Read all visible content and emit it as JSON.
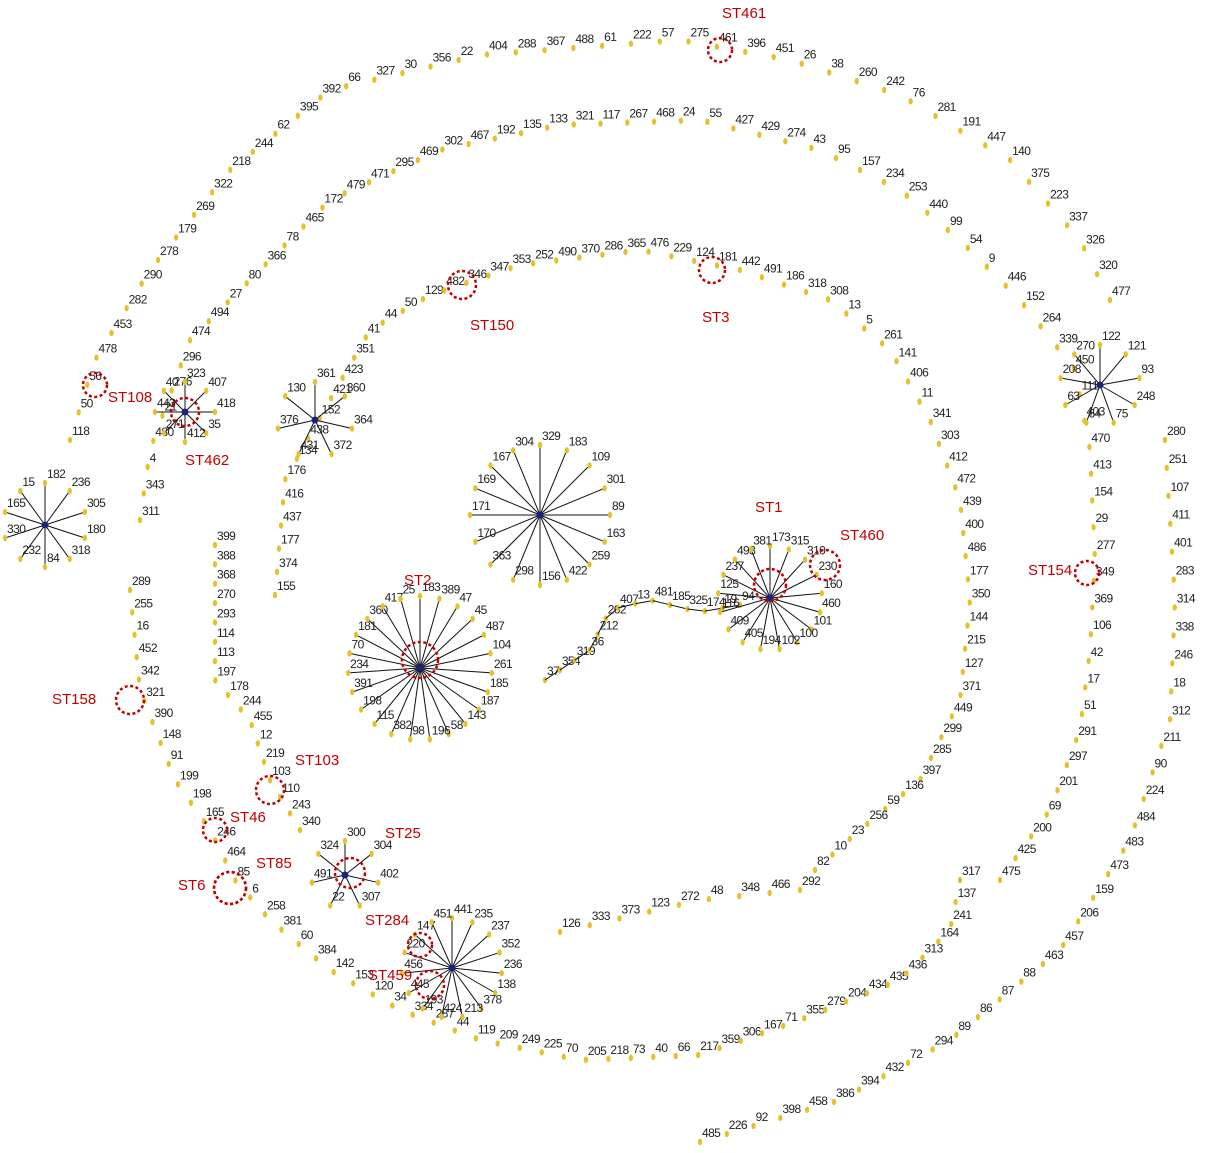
{
  "chains": [
    {
      "nodes": [
        "118",
        "50",
        "56",
        "478",
        "453",
        "282",
        "290",
        "278",
        "179",
        "269",
        "322",
        "218",
        "244",
        "62",
        "395",
        "392",
        "66",
        "327",
        "30",
        "356",
        "22",
        "404",
        "288",
        "367",
        "488",
        "61",
        "222",
        "57",
        "275",
        "461",
        "396",
        "451",
        "26",
        "38",
        "260",
        "242",
        "76",
        "281",
        "191",
        "447",
        "140",
        "375",
        "223",
        "337",
        "326",
        "320",
        "477"
      ]
    },
    {
      "nodes": [
        "311",
        "343",
        "4",
        "480",
        "21",
        "276",
        "296",
        "474",
        "494",
        "27",
        "80",
        "366",
        "78",
        "465",
        "172",
        "479",
        "471",
        "295",
        "469",
        "302",
        "467",
        "192",
        "135",
        "133",
        "321",
        "117",
        "267",
        "468",
        "24",
        "55",
        "427",
        "429",
        "274",
        "43",
        "95",
        "157",
        "234",
        "253",
        "440",
        "99",
        "54",
        "9",
        "446",
        "152",
        "264",
        "339",
        "450",
        "111",
        "403",
        "470",
        "413",
        "154",
        "29",
        "277",
        "349",
        "369",
        "106",
        "42",
        "17",
        "51",
        "291",
        "297",
        "201",
        "69",
        "200",
        "425",
        "475"
      ]
    },
    {
      "nodes": [
        "155",
        "374",
        "177",
        "437",
        "416",
        "176",
        "134",
        "438",
        "152",
        "421",
        "423",
        "351",
        "41",
        "44",
        "50",
        "129",
        "482",
        "346",
        "347",
        "353",
        "252",
        "490",
        "370",
        "286",
        "365",
        "476",
        "229",
        "124",
        "181",
        "442",
        "491",
        "186",
        "318",
        "308",
        "13",
        "5",
        "261",
        "141",
        "406",
        "11",
        "341",
        "303",
        "412",
        "472",
        "439",
        "400",
        "486",
        "177",
        "350",
        "144",
        "215",
        "127",
        "371",
        "449",
        "299",
        "285",
        "397",
        "136",
        "59",
        "256",
        "23",
        "10",
        "82"
      ]
    },
    {
      "nodes": [
        "292",
        "466",
        "348",
        "48",
        "272",
        "123",
        "373",
        "333",
        "126"
      ]
    },
    {
      "nodes": [
        "289",
        "255",
        "16",
        "452",
        "342",
        "321",
        "390",
        "148",
        "91",
        "199",
        "198",
        "165",
        "246",
        "464",
        "85",
        "6",
        "258",
        "381",
        "60",
        "384",
        "142",
        "153",
        "120",
        "34",
        "334",
        "287",
        "44",
        "119",
        "209",
        "249",
        "225",
        "70",
        "205",
        "218",
        "73",
        "40",
        "66",
        "217",
        "359",
        "306",
        "167",
        "71",
        "355",
        "279",
        "204",
        "434",
        "435",
        "436",
        "313",
        "164",
        "241",
        "137",
        "317"
      ]
    },
    {
      "nodes": [
        "280",
        "251",
        "107",
        "411",
        "401",
        "283",
        "314",
        "338",
        "246",
        "18",
        "312",
        "211",
        "90",
        "224",
        "484",
        "483",
        "473",
        "159",
        "206",
        "457",
        "463",
        "88",
        "87",
        "86",
        "89",
        "294",
        "72",
        "432",
        "394",
        "386",
        "458",
        "398",
        "92",
        "226",
        "485"
      ]
    },
    {
      "nodes": [
        "399",
        "388",
        "368",
        "270",
        "293",
        "114",
        "113",
        "197",
        "178",
        "244",
        "455",
        "12",
        "219",
        "103",
        "110",
        "243",
        "340"
      ]
    },
    {
      "nodes": [
        "37",
        "354",
        "319",
        "36",
        "212",
        "262",
        "407",
        "13",
        "481",
        "185",
        "325",
        "174",
        "19",
        "94"
      ]
    }
  ],
  "clusters": [
    {
      "leaves": [
        "182",
        "236",
        "305",
        "180",
        "318",
        "84",
        "232",
        "330",
        "165",
        "15"
      ]
    },
    {
      "leaves": [
        "323",
        "407",
        "418",
        "35",
        "412",
        "271",
        "443",
        "40"
      ]
    },
    {
      "leaves": [
        "361",
        "360",
        "364",
        "372",
        "431",
        "376",
        "130"
      ]
    },
    {
      "leaves": [
        "329",
        "183",
        "109",
        "301",
        "89",
        "163",
        "259",
        "422",
        "156",
        "298",
        "363",
        "170",
        "171",
        "169",
        "167",
        "304"
      ]
    },
    {
      "leaves": [
        "183",
        "389",
        "47",
        "45",
        "487",
        "104",
        "261",
        "185",
        "187",
        "143",
        "58",
        "196",
        "98",
        "382",
        "115",
        "198",
        "391",
        "234",
        "70",
        "181",
        "360",
        "417",
        "25"
      ]
    },
    {
      "leaves": [
        "173",
        "315",
        "310",
        "230",
        "160",
        "460",
        "101",
        "100",
        "102",
        "194",
        "405",
        "409",
        "116",
        "125",
        "237",
        "493",
        "381"
      ]
    },
    {
      "leaves": [
        "122",
        "121",
        "93",
        "248",
        "75",
        "64",
        "63",
        "208",
        "270"
      ]
    },
    {
      "leaves": [
        "300",
        "304",
        "402",
        "307",
        "22",
        "491",
        "324"
      ]
    },
    {
      "leaves": [
        "441",
        "235",
        "237",
        "352",
        "236",
        "138",
        "378",
        "213",
        "424",
        "193",
        "445",
        "456",
        "220",
        "147",
        "451"
      ]
    }
  ],
  "highlights": [
    {
      "label": "ST461"
    },
    {
      "label": "ST150"
    },
    {
      "label": "ST3"
    },
    {
      "label": "ST108"
    },
    {
      "label": "ST462"
    },
    {
      "label": "ST1"
    },
    {
      "label": "ST460"
    },
    {
      "label": "ST2"
    },
    {
      "label": "ST154"
    },
    {
      "label": "ST158"
    },
    {
      "label": "ST103"
    },
    {
      "label": "ST46"
    },
    {
      "label": "ST85"
    },
    {
      "label": "ST6"
    },
    {
      "label": "ST25"
    },
    {
      "label": "ST284"
    },
    {
      "label": "ST459"
    }
  ]
}
